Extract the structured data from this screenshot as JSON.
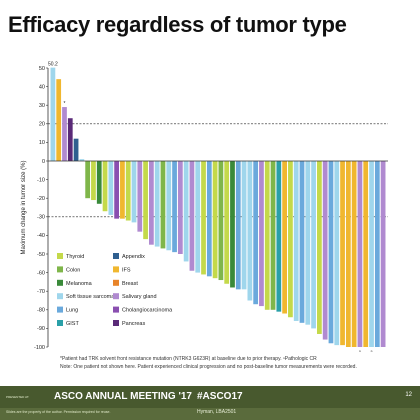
{
  "slide": {
    "title": "Efficacy regardless of tumor type",
    "footnote_line1": "*Patient had TRK solvent front resistance mutation (NTRK3 G623R) at baseline due to prior therapy. ⁿPathologic CR",
    "footnote_line2": "Note: One patient not shown here. Patient experienced clinical progression and no post-baseline tumor measurements were recorded."
  },
  "footer": {
    "presented_by": "PRESENTED AT:",
    "meeting": "ASCO ANNUAL MEETING '17",
    "hashtag": "#ASCO17",
    "presenter": "Hyman, LBA2501",
    "disclaimer": "Slides are the property of the author. Permission required for reuse.",
    "slide_number": "12"
  },
  "chart_data": {
    "type": "bar",
    "ylabel": "Maximum change in tumor size (%)",
    "ylim": [
      -100,
      50
    ],
    "yticks": [
      50,
      40,
      30,
      20,
      10,
      0,
      -10,
      -20,
      -30,
      -40,
      -50,
      -60,
      -70,
      -80,
      -90,
      -100
    ],
    "reference_lines": [
      20,
      -30
    ],
    "annotations": [
      {
        "bar_index": 0,
        "text": "50.2"
      },
      {
        "bar_index": 2,
        "text": "*"
      },
      {
        "bar_index": 53,
        "text": "ⁿ"
      },
      {
        "bar_index": 55,
        "text": "ⁿ"
      }
    ],
    "legend": [
      {
        "label": "Thyroid",
        "color": "#c4d94a"
      },
      {
        "label": "Appendix",
        "color": "#2f5f8f"
      },
      {
        "label": "Colon",
        "color": "#7fb64a"
      },
      {
        "label": "IFS",
        "color": "#f0b72f"
      },
      {
        "label": "Melanoma",
        "color": "#3a8a3a"
      },
      {
        "label": "Breast",
        "color": "#e8842a"
      },
      {
        "label": "Soft tissue sarcoma",
        "color": "#9fd6ec"
      },
      {
        "label": "Salivary gland",
        "color": "#b08ad0"
      },
      {
        "label": "Lung",
        "color": "#6aa9dc"
      },
      {
        "label": "Cholangiocarcinoma",
        "color": "#8a4fb0"
      },
      {
        "label": "GIST",
        "color": "#2aa0a8"
      },
      {
        "label": "Pancreas",
        "color": "#5a2a78"
      }
    ],
    "bars": [
      {
        "value": 50.2,
        "type": "Soft tissue sarcoma"
      },
      {
        "value": 44,
        "type": "IFS"
      },
      {
        "value": 29,
        "type": "Salivary gland"
      },
      {
        "value": 23,
        "type": "Pancreas"
      },
      {
        "value": 12,
        "type": "Appendix"
      },
      {
        "value": 1,
        "type": "Soft tissue sarcoma"
      },
      {
        "value": -20,
        "type": "Colon"
      },
      {
        "value": -21,
        "type": "Thyroid"
      },
      {
        "value": -23,
        "type": "Melanoma"
      },
      {
        "value": -27,
        "type": "Thyroid"
      },
      {
        "value": -29,
        "type": "Soft tissue sarcoma"
      },
      {
        "value": -31,
        "type": "Cholangiocarcinoma"
      },
      {
        "value": -31,
        "type": "IFS"
      },
      {
        "value": -32,
        "type": "Thyroid"
      },
      {
        "value": -33,
        "type": "Soft tissue sarcoma"
      },
      {
        "value": -38,
        "type": "Salivary gland"
      },
      {
        "value": -42,
        "type": "Thyroid"
      },
      {
        "value": -45,
        "type": "Salivary gland"
      },
      {
        "value": -46,
        "type": "Soft tissue sarcoma"
      },
      {
        "value": -47,
        "type": "Colon"
      },
      {
        "value": -48,
        "type": "Soft tissue sarcoma"
      },
      {
        "value": -49,
        "type": "Lung"
      },
      {
        "value": -50,
        "type": "Salivary gland"
      },
      {
        "value": -54,
        "type": "Soft tissue sarcoma"
      },
      {
        "value": -59,
        "type": "Salivary gland"
      },
      {
        "value": -60,
        "type": "Soft tissue sarcoma"
      },
      {
        "value": -61,
        "type": "Thyroid"
      },
      {
        "value": -62,
        "type": "Lung"
      },
      {
        "value": -63,
        "type": "Thyroid"
      },
      {
        "value": -64,
        "type": "Colon"
      },
      {
        "value": -66,
        "type": "Thyroid"
      },
      {
        "value": -68,
        "type": "Melanoma"
      },
      {
        "value": -69,
        "type": "Lung"
      },
      {
        "value": -69,
        "type": "Soft tissue sarcoma"
      },
      {
        "value": -75,
        "type": "Soft tissue sarcoma"
      },
      {
        "value": -77,
        "type": "Lung"
      },
      {
        "value": -78,
        "type": "Salivary gland"
      },
      {
        "value": -80,
        "type": "Thyroid"
      },
      {
        "value": -80,
        "type": "Colon"
      },
      {
        "value": -81,
        "type": "GIST"
      },
      {
        "value": -82,
        "type": "IFS"
      },
      {
        "value": -84,
        "type": "Thyroid"
      },
      {
        "value": -86,
        "type": "Soft tissue sarcoma"
      },
      {
        "value": -87,
        "type": "Lung"
      },
      {
        "value": -88,
        "type": "Soft tissue sarcoma"
      },
      {
        "value": -90,
        "type": "Soft tissue sarcoma"
      },
      {
        "value": -93,
        "type": "Thyroid"
      },
      {
        "value": -96,
        "type": "Salivary gland"
      },
      {
        "value": -98,
        "type": "Lung"
      },
      {
        "value": -99,
        "type": "Soft tissue sarcoma"
      },
      {
        "value": -99,
        "type": "IFS"
      },
      {
        "value": -100,
        "type": "IFS"
      },
      {
        "value": -100,
        "type": "IFS"
      },
      {
        "value": -100,
        "type": "Salivary gland"
      },
      {
        "value": -100,
        "type": "IFS"
      },
      {
        "value": -100,
        "type": "Soft tissue sarcoma"
      },
      {
        "value": -100,
        "type": "Lung"
      },
      {
        "value": -100,
        "type": "Salivary gland"
      }
    ]
  }
}
